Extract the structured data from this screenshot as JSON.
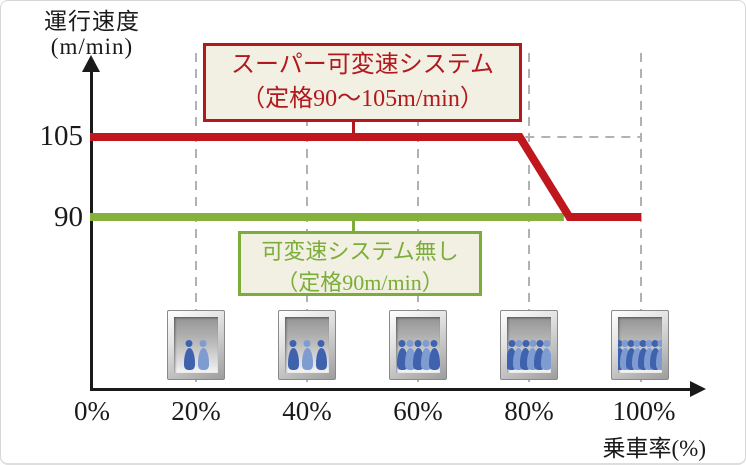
{
  "chart": {
    "y_axis_title_line1": "運行速度",
    "y_axis_title_line2": "(m/min)",
    "x_axis_title": "乗車率(%)",
    "y_ticks": [
      {
        "label": "105"
      },
      {
        "label": "90"
      }
    ],
    "x_ticks": [
      {
        "label": "0%"
      },
      {
        "label": "20%"
      },
      {
        "label": "40%"
      },
      {
        "label": "60%"
      },
      {
        "label": "80%"
      },
      {
        "label": "100%"
      }
    ],
    "red_callout_line1": "スーパー可変速システム",
    "red_callout_line2": "（定格90～105m/min）",
    "green_callout_line1": "可変速システム無し",
    "green_callout_line2": "（定格90m/min）",
    "colors": {
      "red_line": "#c0161d",
      "red_text": "#b2191f",
      "green_line": "#84b23c",
      "green_text": "#7cad38",
      "callout_bg": "#f2efe3",
      "grid_dash": "#b2b2b2",
      "axis": "#1a1a1a",
      "person_dark": "#3f62ae",
      "person_light": "#7e9bd2"
    }
  },
  "chart_data": {
    "type": "line",
    "title": "",
    "xlabel": "乗車率(%)",
    "ylabel": "運行速度(m/min)",
    "x_tick_labels": [
      "0%",
      "20%",
      "40%",
      "60%",
      "80%",
      "100%"
    ],
    "y_tick_labels": [
      105,
      90
    ],
    "xlim": [
      0,
      100
    ],
    "grid": "vertical-dashed",
    "series": [
      {
        "name": "スーパー可変速システム（定格90～105m/min）",
        "color": "#c0161d",
        "points": [
          [
            0,
            105
          ],
          [
            78,
            105
          ],
          [
            87,
            90
          ],
          [
            100,
            90
          ]
        ]
      },
      {
        "name": "可変速システム無し（定格90m/min）",
        "color": "#84b23c",
        "points": [
          [
            0,
            90
          ],
          [
            86,
            90
          ]
        ]
      }
    ],
    "annotations": [
      {
        "type": "dashed-reference-line",
        "y": 105,
        "x_range": [
          79,
          100
        ]
      }
    ],
    "pictograms": "elevator cars under x-axis ticks showing passenger load"
  },
  "elevators": [
    {
      "at": "20%",
      "people": 2
    },
    {
      "at": "40%",
      "people": 3
    },
    {
      "at": "60%",
      "people": 5
    },
    {
      "at": "80%",
      "people": 6
    },
    {
      "at": "100%",
      "people": 8
    }
  ]
}
